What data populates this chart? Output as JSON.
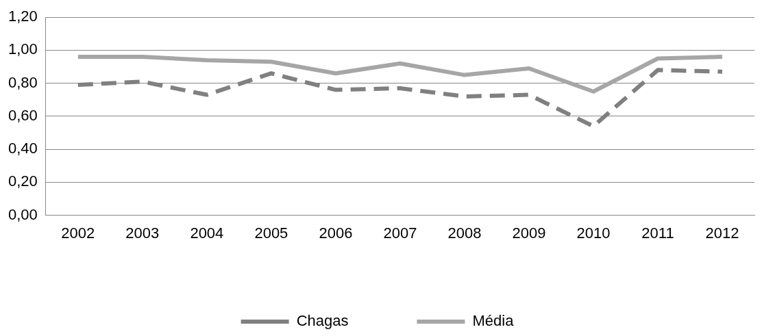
{
  "chart_data": {
    "type": "line",
    "categories": [
      "2002",
      "2003",
      "2004",
      "2005",
      "2006",
      "2007",
      "2008",
      "2009",
      "2010",
      "2011",
      "2012"
    ],
    "series": [
      {
        "name": "Chagas",
        "color": "#808080",
        "line_style": "dashed",
        "values": [
          0.79,
          0.81,
          0.73,
          0.86,
          0.76,
          0.77,
          0.72,
          0.73,
          0.54,
          0.88,
          0.87
        ]
      },
      {
        "name": "Média",
        "color": "#a6a6a6",
        "line_style": "solid",
        "values": [
          0.96,
          0.96,
          0.94,
          0.93,
          0.86,
          0.92,
          0.85,
          0.89,
          0.75,
          0.95,
          0.96
        ]
      }
    ],
    "ylim": [
      0,
      1.2
    ],
    "yticks": [
      {
        "value": 0,
        "label": "0,00"
      },
      {
        "value": 0.2,
        "label": "0,20"
      },
      {
        "value": 0.4,
        "label": "0,40"
      },
      {
        "value": 0.6,
        "label": "0,60"
      },
      {
        "value": 0.8,
        "label": "0,80"
      },
      {
        "value": 1,
        "label": "1,00"
      },
      {
        "value": 1.2,
        "label": "1,20"
      }
    ],
    "grid": "y",
    "legend": "bottom",
    "marker": "none"
  }
}
